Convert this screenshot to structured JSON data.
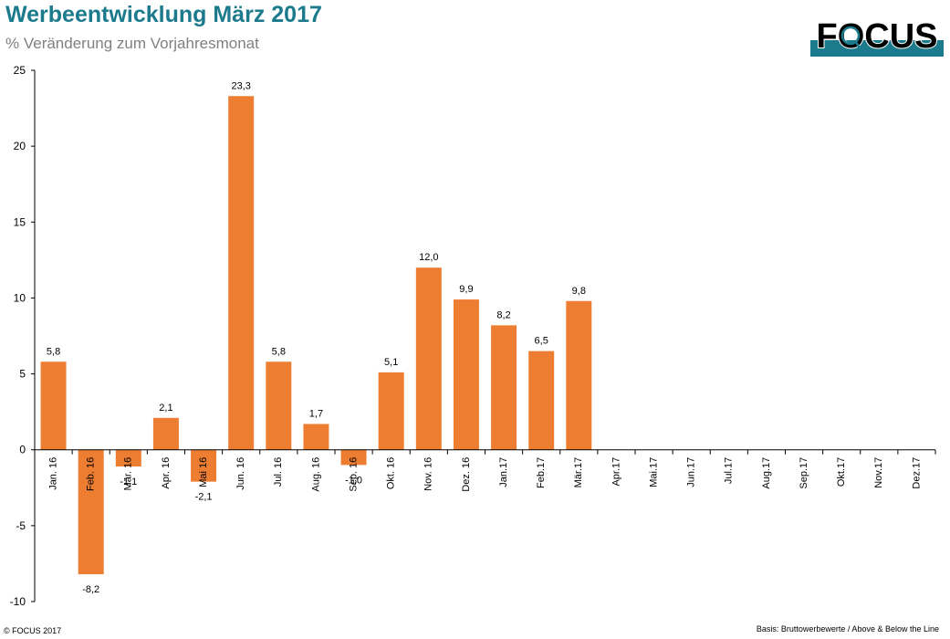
{
  "header": {
    "title": "Werbeentwicklung März 2017",
    "subtitle": "% Veränderung zum Vorjahresmonat"
  },
  "logo": {
    "text": "FOCUS",
    "colors": {
      "text": "#000000",
      "band": "#1b7a8c"
    }
  },
  "footer": {
    "copyright": "© FOCUS 2017",
    "source": "Basis: Bruttowerbewerte / Above & Below the Line"
  },
  "colors": {
    "bar": "#ed7d31",
    "axis": "#000000",
    "tick_text": "#000000"
  },
  "chart_data": {
    "type": "bar",
    "title": "Werbeentwicklung März 2017",
    "subtitle": "% Veränderung zum Vorjahresmonat",
    "xlabel": "",
    "ylabel": "",
    "ylim": [
      -10,
      25
    ],
    "yticks": [
      -10,
      -5,
      0,
      5,
      10,
      15,
      20,
      25
    ],
    "grid": false,
    "legend": "none",
    "categories": [
      "Jan. 16",
      "Feb. 16",
      "Mär. 16",
      "Apr. 16",
      "Mai 16",
      "Jun. 16",
      "Jul. 16",
      "Aug. 16",
      "Sep. 16",
      "Okt. 16",
      "Nov. 16",
      "Dez. 16",
      "Jan.17",
      "Feb.17",
      "Mär.17",
      "Apr.17",
      "Mai.17",
      "Jun.17",
      "Jul.17",
      "Aug.17",
      "Sep.17",
      "Okt.17",
      "Nov.17",
      "Dez.17"
    ],
    "values": [
      5.8,
      -8.2,
      -1.1,
      2.1,
      -2.1,
      23.3,
      5.8,
      1.7,
      -1.0,
      5.1,
      12.0,
      9.9,
      8.2,
      6.5,
      9.8,
      null,
      null,
      null,
      null,
      null,
      null,
      null,
      null,
      null
    ],
    "data_labels": [
      "5,8",
      "-8,2",
      "-1,1",
      "2,1",
      "-2,1",
      "23,3",
      "5,8",
      "1,7",
      "-1,0",
      "5,1",
      "12,0",
      "9,9",
      "8,2",
      "6,5",
      "9,8",
      "",
      "",
      "",
      "",
      "",
      "",
      "",
      "",
      ""
    ]
  }
}
